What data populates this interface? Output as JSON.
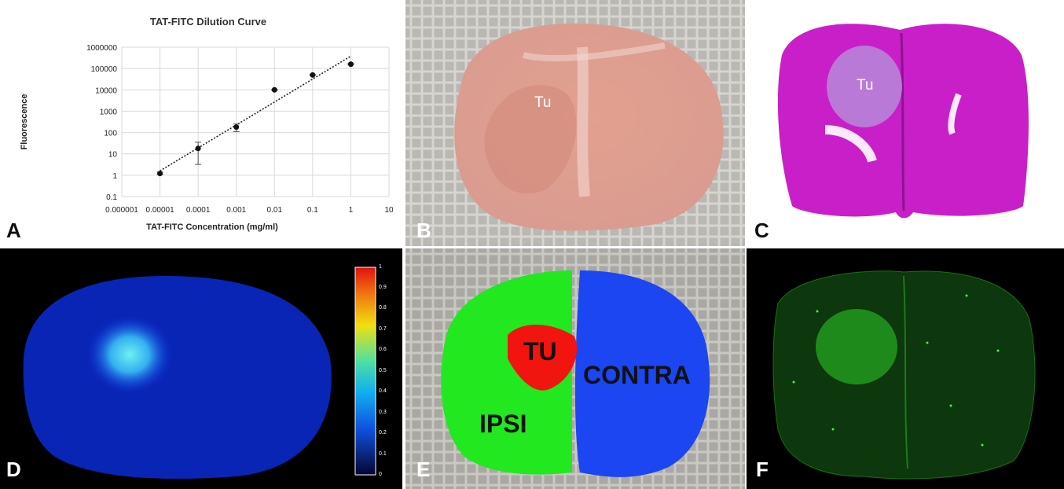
{
  "panels": {
    "A": {
      "label": "A"
    },
    "B": {
      "label": "B",
      "annotation": "Tu"
    },
    "C": {
      "label": "C",
      "annotation": "Tu"
    },
    "D": {
      "label": "D",
      "colorbar_ticks": [
        "1",
        "0.9",
        "0.8",
        "0.7",
        "0.6",
        "0.5",
        "0.4",
        "0.3",
        "0.2",
        "0.1",
        "0"
      ]
    },
    "E": {
      "label": "E",
      "regions": {
        "tumor": "TU",
        "ipsi": "IPSI",
        "contra": "CONTRA"
      }
    },
    "F": {
      "label": "F"
    }
  },
  "colors": {
    "ipsi": "#22e81f",
    "contra": "#1c46f2",
    "tumor": "#f2140f",
    "stain": "#c81fc8",
    "fluorescence": "#2fd02a"
  },
  "chart_data": {
    "type": "scatter",
    "title": "TAT-FITC Dilution Curve",
    "xlabel": "TAT-FITC Concentration (mg/ml)",
    "ylabel": "Fluorescence",
    "x_scale": "log",
    "y_scale": "log",
    "xlim": [
      1e-06,
      10
    ],
    "ylim": [
      0.1,
      1000000
    ],
    "x_tick_labels": [
      "0.000001",
      "0.00001",
      "0.0001",
      "0.001",
      "0.01",
      "0.1",
      "1",
      "10"
    ],
    "y_tick_labels": [
      "0.1",
      "1",
      "10",
      "100",
      "1000",
      "10000",
      "100000",
      "1000000"
    ],
    "grid": true,
    "series": [
      {
        "points": [
          {
            "x": 1e-05,
            "y": 1.2,
            "err_low": 1.1,
            "err_high": 1.4
          },
          {
            "x": 0.0001,
            "y": 18,
            "err_low": 3.2,
            "err_high": 35
          },
          {
            "x": 0.001,
            "y": 180,
            "err_low": 110,
            "err_high": 250
          },
          {
            "x": 0.01,
            "y": 10000,
            "err_low": 9500,
            "err_high": 10500
          },
          {
            "x": 0.1,
            "y": 50000,
            "err_low": 47000,
            "err_high": 53000
          },
          {
            "x": 1,
            "y": 160000,
            "err_low": 150000,
            "err_high": 170000
          }
        ],
        "trendline": {
          "x": [
            1e-05,
            1
          ],
          "y": [
            1.6,
            380000
          ]
        }
      }
    ]
  }
}
